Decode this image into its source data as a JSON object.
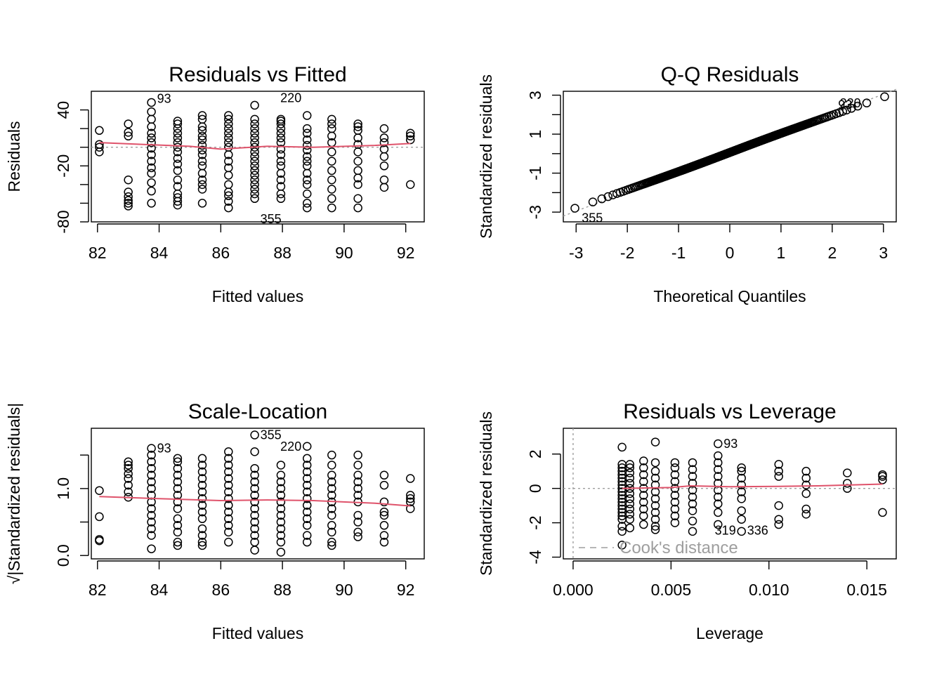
{
  "chart_data": [
    {
      "type": "scatter",
      "title": "Residuals vs Fitted",
      "xlabel": "Fitted values",
      "ylabel": "Residuals",
      "xlim": [
        81.8,
        92.6
      ],
      "ylim": [
        -80,
        60
      ],
      "xticks": [
        82,
        84,
        86,
        88,
        90,
        92
      ],
      "xtick_labels": [
        "82",
        "84",
        "86",
        "88",
        "90",
        "92"
      ],
      "yticks": [
        -80,
        -60,
        -40,
        -20,
        0,
        20,
        40
      ],
      "ytick_labels": [
        "-80",
        "",
        "",
        "-20",
        "",
        "",
        "40"
      ],
      "columns": [
        {
          "x": 82.06,
          "y": [
            -5,
            0,
            3,
            18
          ]
        },
        {
          "x": 83.0,
          "y": [
            -63,
            -60,
            -57,
            -53,
            -48,
            -35,
            12,
            16,
            25
          ]
        },
        {
          "x": 83.75,
          "y": [
            -60,
            -47,
            -38,
            -28,
            -22,
            -15,
            -8,
            -1,
            5,
            10,
            15,
            22,
            30,
            38,
            48
          ]
        },
        {
          "x": 84.6,
          "y": [
            -62,
            -58,
            -54,
            -50,
            -42,
            -35,
            -25,
            -18,
            -12,
            -5,
            0,
            5,
            10,
            15,
            20,
            25,
            28
          ]
        },
        {
          "x": 85.4,
          "y": [
            -60,
            -45,
            -40,
            -35,
            -28,
            -20,
            -15,
            -8,
            -3,
            2,
            8,
            12,
            18,
            22,
            30,
            34
          ]
        },
        {
          "x": 86.25,
          "y": [
            -65,
            -58,
            -52,
            -48,
            -40,
            -30,
            -22,
            -15,
            -8,
            0,
            5,
            10,
            15,
            20,
            25,
            30,
            34
          ]
        },
        {
          "x": 87.1,
          "y": [
            -55,
            -50,
            -45,
            -40,
            -35,
            -30,
            -25,
            -20,
            -15,
            -10,
            -5,
            0,
            5,
            10,
            15,
            20,
            25,
            30,
            45
          ]
        },
        {
          "x": 87.95,
          "y": [
            -55,
            -50,
            -42,
            -35,
            -28,
            -20,
            -15,
            -8,
            -2,
            5,
            10,
            15,
            20,
            25,
            28,
            30
          ]
        },
        {
          "x": 88.8,
          "y": [
            -65,
            -60,
            -50,
            -40,
            -35,
            -28,
            -20,
            -15,
            -10,
            -3,
            2,
            8,
            15,
            20,
            34
          ]
        },
        {
          "x": 89.6,
          "y": [
            -65,
            -55,
            -45,
            -35,
            -25,
            -15,
            -5,
            5,
            12,
            20,
            25,
            30
          ]
        },
        {
          "x": 90.45,
          "y": [
            -65,
            -55,
            -40,
            -33,
            -25,
            -15,
            -5,
            3,
            10,
            18,
            22,
            25
          ]
        },
        {
          "x": 91.3,
          "y": [
            -43,
            -35,
            -20,
            -10,
            -2,
            5,
            10,
            20
          ]
        },
        {
          "x": 92.15,
          "y": [
            -40,
            8,
            12,
            15
          ]
        }
      ],
      "smooth": [
        [
          82.06,
          5
        ],
        [
          83.5,
          3
        ],
        [
          85.0,
          1
        ],
        [
          86.0,
          -2
        ],
        [
          87.5,
          1
        ],
        [
          89.0,
          0
        ],
        [
          91.0,
          2
        ],
        [
          92.15,
          4
        ]
      ],
      "refline_y": 0,
      "labeled_points": [
        {
          "x": 83.75,
          "y": 52,
          "label": "93",
          "side": "right"
        },
        {
          "x": 88.8,
          "y": 53,
          "label": "220",
          "side": "left"
        },
        {
          "x": 87.1,
          "y": -77,
          "label": "355",
          "side": "right"
        }
      ]
    },
    {
      "type": "scatter",
      "title": "Q-Q Residuals",
      "xlabel": "Theoretical Quantiles",
      "ylabel": "Standardized residuals",
      "xlim": [
        -3.25,
        3.25
      ],
      "ylim": [
        -3.5,
        3.2
      ],
      "xticks": [
        -3,
        -2,
        -1,
        0,
        1,
        2,
        3
      ],
      "xtick_labels": [
        "-3",
        "-2",
        "-1",
        "0",
        "1",
        "2",
        "3"
      ],
      "yticks": [
        -3,
        -2,
        -1,
        0,
        1,
        2,
        3
      ],
      "ytick_labels": [
        "-3",
        "",
        "-1",
        "",
        "1",
        "",
        "3"
      ],
      "n_points": 400,
      "refline": {
        "intercept": 0.05,
        "slope": 1.0
      },
      "labeled_points": [
        {
          "x": -3.0,
          "y": -3.3,
          "label": "355",
          "side": "right"
        },
        {
          "x": 2.5,
          "y": 2.5,
          "label": "93",
          "side": "left"
        },
        {
          "x": 2.67,
          "y": 2.58,
          "label": "220",
          "side": "left"
        }
      ]
    },
    {
      "type": "scatter",
      "title": "Scale-Location",
      "xlabel": "Fitted values",
      "ylabel": "√|Standardized residuals|",
      "xlim": [
        81.8,
        92.6
      ],
      "ylim": [
        -0.05,
        1.9
      ],
      "xticks": [
        82,
        84,
        86,
        88,
        90,
        92
      ],
      "xtick_labels": [
        "82",
        "84",
        "86",
        "88",
        "90",
        "92"
      ],
      "yticks": [
        0.0,
        0.5,
        1.0,
        1.5
      ],
      "ytick_labels": [
        "0.0",
        "",
        "1.0",
        ""
      ],
      "columns": [
        {
          "x": 82.06,
          "y": [
            0.22,
            0.24,
            0.58,
            0.97
          ]
        },
        {
          "x": 83.0,
          "y": [
            0.87,
            0.95,
            1.05,
            1.15,
            1.22,
            1.3,
            1.35,
            1.4
          ]
        },
        {
          "x": 83.75,
          "y": [
            0.1,
            0.3,
            0.4,
            0.5,
            0.6,
            0.7,
            0.8,
            0.9,
            1.0,
            1.1,
            1.2,
            1.3,
            1.4,
            1.5,
            1.6
          ]
        },
        {
          "x": 84.6,
          "y": [
            0.15,
            0.2,
            0.35,
            0.45,
            0.55,
            0.7,
            0.8,
            0.9,
            1.0,
            1.1,
            1.2,
            1.3,
            1.4,
            1.45
          ]
        },
        {
          "x": 85.4,
          "y": [
            0.15,
            0.2,
            0.3,
            0.4,
            0.55,
            0.65,
            0.75,
            0.85,
            0.95,
            1.05,
            1.15,
            1.25,
            1.35,
            1.45
          ]
        },
        {
          "x": 86.25,
          "y": [
            0.2,
            0.35,
            0.45,
            0.55,
            0.65,
            0.75,
            0.85,
            0.95,
            1.05,
            1.15,
            1.25,
            1.35,
            1.45,
            1.55
          ]
        },
        {
          "x": 87.1,
          "y": [
            0.08,
            0.2,
            0.3,
            0.4,
            0.5,
            0.6,
            0.7,
            0.8,
            0.9,
            1.0,
            1.1,
            1.2,
            1.3,
            1.55,
            1.8
          ]
        },
        {
          "x": 87.95,
          "y": [
            0.05,
            0.2,
            0.3,
            0.4,
            0.5,
            0.6,
            0.7,
            0.8,
            0.9,
            1.0,
            1.1,
            1.2,
            1.35
          ]
        },
        {
          "x": 88.8,
          "y": [
            0.2,
            0.3,
            0.45,
            0.55,
            0.65,
            0.75,
            0.85,
            0.95,
            1.05,
            1.15,
            1.25,
            1.35,
            1.45,
            1.63
          ]
        },
        {
          "x": 89.6,
          "y": [
            0.15,
            0.2,
            0.35,
            0.45,
            0.6,
            0.7,
            0.8,
            0.9,
            1.0,
            1.1,
            1.2,
            1.35,
            1.5
          ]
        },
        {
          "x": 90.45,
          "y": [
            0.28,
            0.35,
            0.5,
            0.6,
            0.8,
            0.9,
            1.0,
            1.1,
            1.2,
            1.35,
            1.5
          ]
        },
        {
          "x": 91.3,
          "y": [
            0.2,
            0.3,
            0.45,
            0.6,
            0.65,
            0.8,
            1.05,
            1.2
          ]
        },
        {
          "x": 92.15,
          "y": [
            0.7,
            0.8,
            0.85,
            0.9,
            1.15
          ]
        }
      ],
      "smooth": [
        [
          82.06,
          0.88
        ],
        [
          84.0,
          0.85
        ],
        [
          86.0,
          0.82
        ],
        [
          87.5,
          0.83
        ],
        [
          89.0,
          0.82
        ],
        [
          91.0,
          0.78
        ],
        [
          92.15,
          0.74
        ]
      ],
      "labeled_points": [
        {
          "x": 83.75,
          "y": 1.6,
          "label": "93",
          "side": "right"
        },
        {
          "x": 87.1,
          "y": 1.8,
          "label": "355",
          "side": "right"
        },
        {
          "x": 88.8,
          "y": 1.63,
          "label": "220",
          "side": "left"
        }
      ]
    },
    {
      "type": "scatter",
      "title": "Residuals vs Leverage",
      "xlabel": "Leverage",
      "ylabel": "Standardized residuals",
      "xlim": [
        -0.0005,
        0.0165
      ],
      "ylim": [
        -4.1,
        3.5
      ],
      "xticks": [
        0.0,
        0.005,
        0.01,
        0.015
      ],
      "xtick_labels": [
        "0.000",
        "0.005",
        "0.010",
        "0.015"
      ],
      "yticks": [
        -4,
        -2,
        0,
        2
      ],
      "ytick_labels": [
        "-4",
        "-2",
        "0",
        "2"
      ],
      "columns": [
        {
          "x": 0.0025,
          "y": [
            -2.5,
            -2.2,
            -1.8,
            -1.6,
            -1.4,
            -1.2,
            -1.0,
            -0.8,
            -0.6,
            -0.4,
            -0.2,
            0.0,
            0.2,
            0.4,
            0.6,
            0.8,
            1.0,
            1.2,
            1.4,
            2.4
          ]
        },
        {
          "x": 0.0029,
          "y": [
            -2.3,
            -1.8,
            -1.5,
            -1.2,
            -0.9,
            -0.6,
            -0.3,
            0.0,
            0.3,
            0.6,
            0.9,
            1.2,
            1.4
          ]
        },
        {
          "x": 0.0036,
          "y": [
            -2.1,
            -1.6,
            -1.2,
            -0.8,
            -0.4,
            0.0,
            0.4,
            0.8,
            1.2,
            1.6
          ]
        },
        {
          "x": 0.0042,
          "y": [
            -2.4,
            -2.2,
            -1.8,
            -1.4,
            -1.0,
            -0.6,
            -0.2,
            0.2,
            0.6,
            1.0,
            1.5,
            2.7
          ]
        },
        {
          "x": 0.0052,
          "y": [
            -2.0,
            -1.6,
            -1.2,
            -0.8,
            -0.4,
            0.0,
            0.4,
            0.8,
            1.2,
            1.5
          ]
        },
        {
          "x": 0.0061,
          "y": [
            -2.5,
            -1.9,
            -1.3,
            -0.9,
            -0.5,
            -0.1,
            0.3,
            0.7,
            1.1,
            1.5
          ]
        },
        {
          "x": 0.0074,
          "y": [
            -2.1,
            -1.4,
            -0.9,
            -0.5,
            -0.1,
            0.3,
            0.7,
            1.1,
            1.5,
            1.9,
            2.6
          ]
        },
        {
          "x": 0.0086,
          "y": [
            -2.5,
            -1.8,
            -1.3,
            -0.6,
            -0.2,
            0.2,
            0.6,
            1.0,
            1.2
          ]
        },
        {
          "x": 0.0105,
          "y": [
            -2.1,
            -1.8,
            -1.0,
            0.7,
            1.0,
            1.4
          ]
        },
        {
          "x": 0.0119,
          "y": [
            -1.5,
            -1.2,
            -0.3,
            0.2,
            0.6,
            1.0
          ]
        },
        {
          "x": 0.014,
          "y": [
            0.0,
            0.3,
            0.9
          ]
        },
        {
          "x": 0.0158,
          "y": [
            -1.4,
            0.5,
            0.7,
            0.8
          ]
        }
      ],
      "smooth": [
        [
          0.0025,
          0.0
        ],
        [
          0.005,
          0.05
        ],
        [
          0.006,
          0.15
        ],
        [
          0.008,
          0.1
        ],
        [
          0.0105,
          0.12
        ],
        [
          0.0125,
          0.15
        ],
        [
          0.0158,
          0.25
        ]
      ],
      "refline_y": 0,
      "refline_x": 0,
      "labeled_points": [
        {
          "x": 0.0074,
          "y": 2.6,
          "label": "93",
          "side": "right"
        },
        {
          "x": 0.0086,
          "y": -2.45,
          "label": "319",
          "side": "left"
        },
        {
          "x": 0.0086,
          "y": -2.45,
          "label": "336",
          "side": "right"
        }
      ],
      "legend": {
        "label": "Cook's distance",
        "placement": "bottom-left"
      },
      "outlier_point": {
        "x": 0.0025,
        "y": -3.3
      }
    }
  ]
}
